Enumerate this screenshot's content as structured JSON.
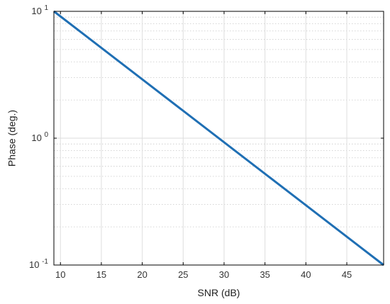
{
  "chart_data": {
    "type": "line",
    "xlabel": "SNR (dB)",
    "ylabel": "Phase (deg.)",
    "x_scale": "linear",
    "y_scale": "log",
    "xlim": [
      9.2,
      49.5
    ],
    "ylim": [
      0.1,
      10
    ],
    "grid": true,
    "x_ticks": [
      10,
      15,
      20,
      25,
      30,
      35,
      40,
      45
    ],
    "y_ticks": [
      {
        "value": 10,
        "base": "10",
        "exp": "1"
      },
      {
        "value": 1,
        "base": "10",
        "exp": "0"
      },
      {
        "value": 0.1,
        "base": "10",
        "exp": "-1"
      }
    ],
    "series": [
      {
        "color": "#1f6fb4",
        "x": [
          9.2,
          49.5
        ],
        "y": [
          10,
          0.1
        ]
      }
    ]
  }
}
